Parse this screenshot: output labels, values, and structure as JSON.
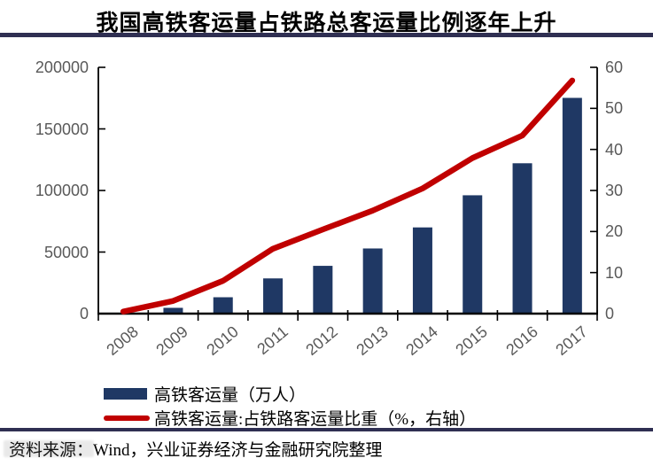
{
  "header": {
    "title": "我国高铁客运量占铁路总客运量比例逐年上升",
    "rule_color": "#2F2F52"
  },
  "chart_data": {
    "type": "bar",
    "combo": "bar+line",
    "title": "我国高铁客运量占铁路总客运量比例逐年上升",
    "categories": [
      "2008",
      "2009",
      "2010",
      "2011",
      "2012",
      "2013",
      "2014",
      "2015",
      "2016",
      "2017"
    ],
    "series": [
      {
        "name": "高铁客运量（万人）",
        "kind": "bar",
        "axis": "left",
        "color": "#1F3864",
        "values": [
          700,
          4700,
          13300,
          28600,
          38800,
          52900,
          70000,
          96100,
          122100,
          175200
        ]
      },
      {
        "name": "高铁客运量:占铁路客运量比重（%，右轴）",
        "kind": "line",
        "axis": "right",
        "color": "#C00000",
        "values": [
          0.5,
          3.1,
          8.0,
          15.8,
          20.5,
          25.1,
          30.5,
          37.9,
          43.4,
          56.8
        ]
      }
    ],
    "left_axis": {
      "min": 0,
      "max": 200000,
      "ticks": [
        0,
        50000,
        100000,
        150000,
        200000
      ]
    },
    "right_axis": {
      "min": 0,
      "max": 60,
      "ticks": [
        0,
        10,
        20,
        30,
        40,
        50,
        60
      ]
    },
    "grid": false,
    "legend_position": "bottom-left",
    "axis_label_color": "#595959",
    "axis_line_color": "#000000"
  },
  "legend": {
    "items": [
      {
        "label": "高铁客运量（万人）",
        "swatch": "bar",
        "color": "#1F3864"
      },
      {
        "label": "高铁客运量:占铁路客运量比重（%，右轴）",
        "swatch": "line",
        "color": "#C00000"
      }
    ]
  },
  "footer": {
    "source_label": "资料来源：",
    "source_text": "Wind，兴业证券经济与金融研究院整理",
    "rule_color": "#2F2F52"
  }
}
